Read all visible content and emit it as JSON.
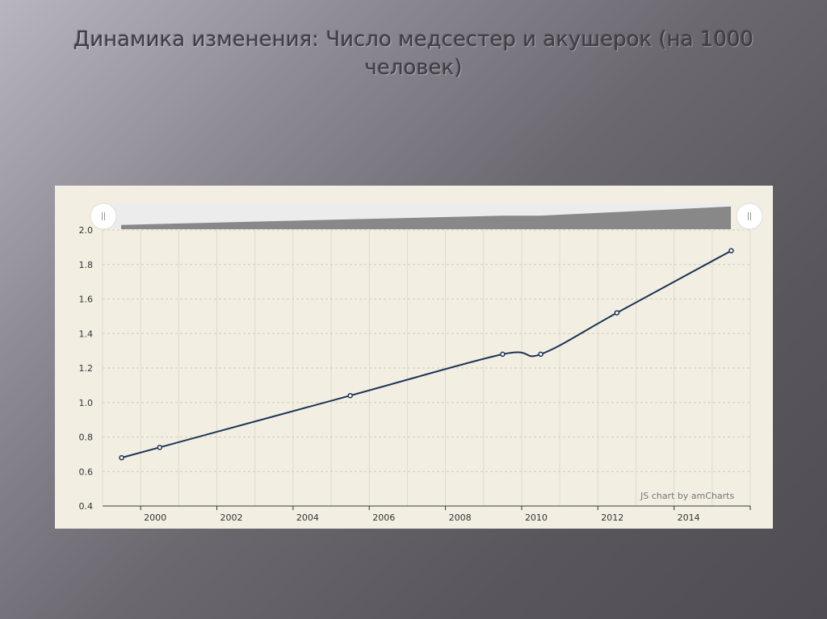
{
  "slide": {
    "title": "Динамика изменения: Число медсестер и акушерок (на 1000 человек)"
  },
  "chart_data": {
    "type": "line",
    "title": "",
    "xlabel": "",
    "ylabel": "",
    "x": [
      1999.5,
      2000.5,
      2005.5,
      2009.5,
      2010.5,
      2012.5,
      2015.5
    ],
    "series": [
      {
        "values": [
          0.68,
          0.74,
          1.04,
          1.28,
          1.28,
          1.52,
          1.88
        ]
      }
    ],
    "xlim": [
      1999,
      2016
    ],
    "ylim": [
      0.4,
      2.0
    ],
    "x_ticks": [
      "2000",
      "2002",
      "2004",
      "2006",
      "2008",
      "2010",
      "2012",
      "2014"
    ],
    "y_ticks": [
      "0.4",
      "0.6",
      "0.8",
      "1.0",
      "1.2",
      "1.4",
      "1.6",
      "1.8",
      "2.0"
    ],
    "grid": true,
    "smoothed": true,
    "line_color": "#1b3556",
    "scrollbar": true,
    "watermark": "JS chart by amCharts"
  }
}
